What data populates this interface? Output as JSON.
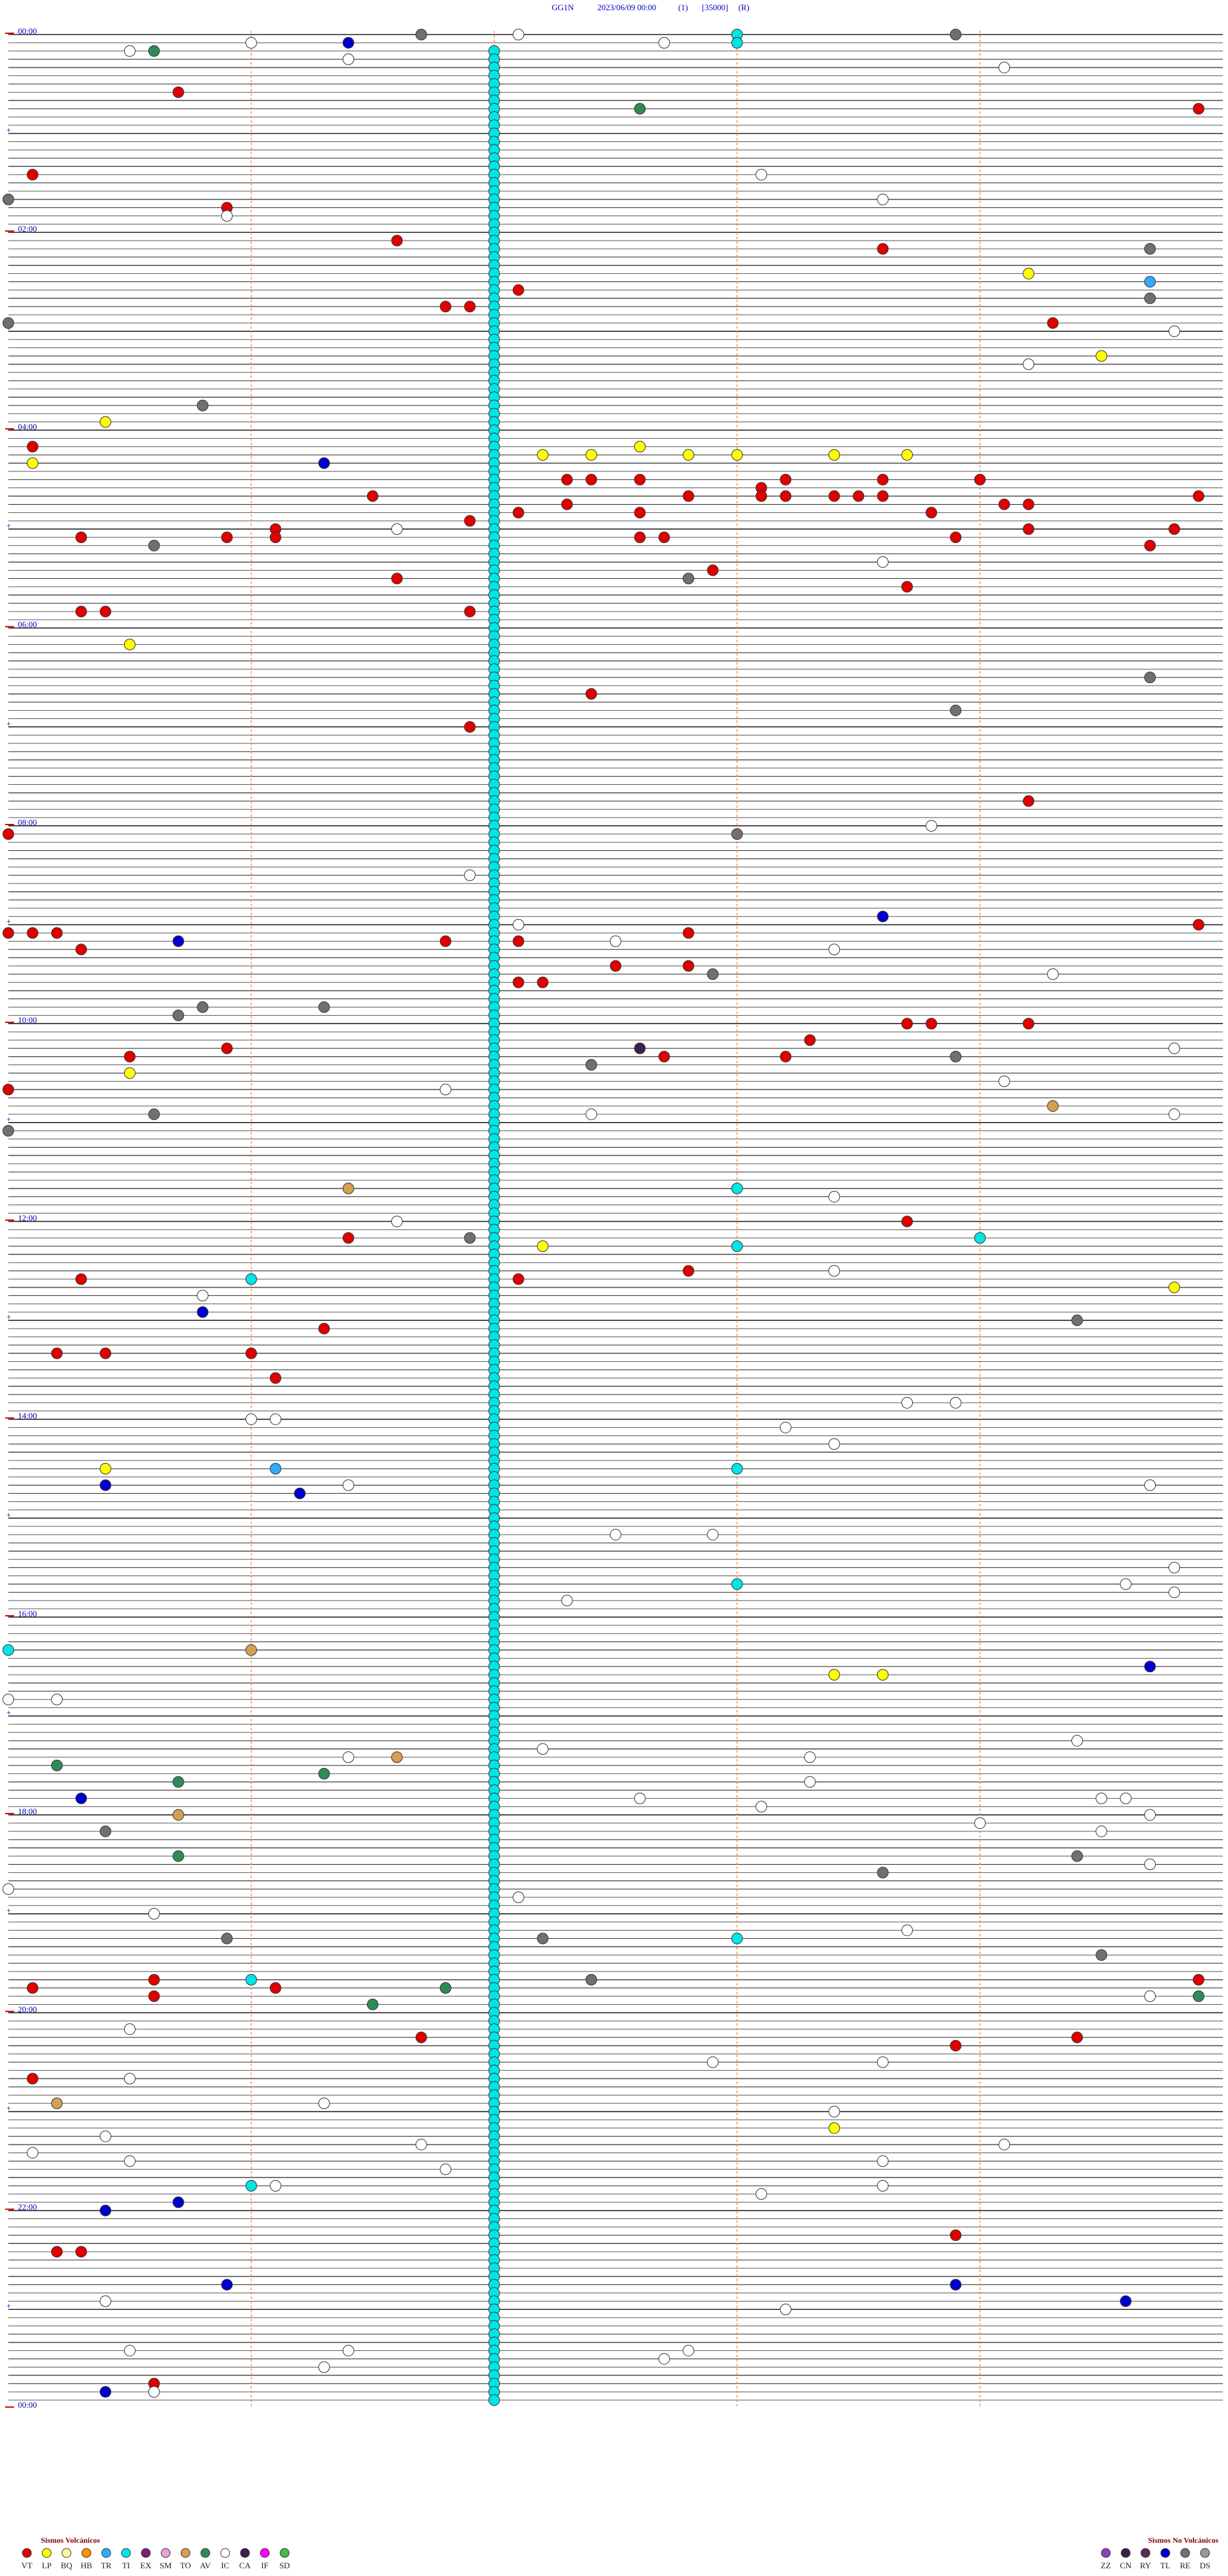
{
  "header": {
    "station": "GG1N",
    "datetime": "2023/06/09 00:00",
    "channel": "(1)",
    "scale": "[35000]",
    "mode": "(R)"
  },
  "time_labels": [
    "00:00",
    "02:00",
    "04:00",
    "06:00",
    "08:00",
    "10:00",
    "12:00",
    "14:00",
    "16:00",
    "18:00",
    "20:00",
    "22:00",
    "00:00"
  ],
  "legend": {
    "volcanic": {
      "title": "Sismos Volcánicos",
      "types": [
        {
          "code": "VT",
          "color": "#e00000"
        },
        {
          "code": "LP",
          "color": "#ffff00"
        },
        {
          "code": "BQ",
          "color": "#ffffa0"
        },
        {
          "code": "HB",
          "color": "#ff9000"
        },
        {
          "code": "TR",
          "color": "#33aaff"
        },
        {
          "code": "TI",
          "color": "#00e5e5"
        },
        {
          "code": "EX",
          "color": "#7a1f7a"
        },
        {
          "code": "SM",
          "color": "#e8a0d8"
        },
        {
          "code": "TO",
          "color": "#d2a050"
        },
        {
          "code": "AV",
          "color": "#2e8b57"
        },
        {
          "code": "IC",
          "color": "#ffffff"
        },
        {
          "code": "CA",
          "color": "#3b2050"
        },
        {
          "code": "IF",
          "color": "#ff00ff"
        },
        {
          "code": "SD",
          "color": "#44bb44"
        }
      ]
    },
    "non_volcanic": {
      "title": "Sismos No Volcánicos",
      "types": [
        {
          "code": "ZZ",
          "color": "#8b3fbf"
        },
        {
          "code": "CN",
          "color": "#3a1f4a"
        },
        {
          "code": "RY",
          "color": "#5a2a5a"
        },
        {
          "code": "TL",
          "color": "#0000cc"
        },
        {
          "code": "RE",
          "color": "#707070"
        },
        {
          "code": "DS",
          "color": "#999999"
        }
      ]
    }
  },
  "events": [
    {
      "type": "VT",
      "minutes": [
        35.7,
        49.9,
        85.1,
        105.9,
        126.6,
        133.6,
        157.1,
        166.8,
        166.9,
        179.3,
        250.1,
        272.3,
        272.4,
        272.6,
        273.2,
        273.6,
        274.0,
        281.5,
        282.8,
        278.1,
        283.1,
        283.2,
        283.4,
        283.5,
        283.6,
        284.9,
        287.3,
        292.1,
        292.6,
        293.8,
        289.1,
        289.2,
        296.9,
        301.1,
        304.2,
        304.8,
        305.3,
        305.9,
        306.1,
        307.6,
        307.7,
        308.9,
        314.7,
        327.9,
        331.6,
        338.7,
        350.3,
        350.4,
        351.9,
        402.4,
        421.9,
        469.2,
        485.0,
        544.9,
        545.0,
        545.1,
        545.2,
        551.8,
        552.1,
        547.8,
        555.3,
        567.5,
        567.8,
        567.0,
        577.1,
        577.2,
        603.7,
        603.8,
        604.2,
        613.3,
        615.9,
        620.5,
        622.7,
        623.2,
        640.0,
        723.7,
        731.4,
        752.8,
        757.1,
        755.3,
        786.3,
        800.2,
        800.4,
        801.0,
        816.1,
        1180.6,
        1184.9,
        1185.1,
        1186.1,
        1190.6,
        1216.7,
        1219.4,
        1223.9,
        1240.1,
        1338.9,
        1345.2,
        1345.3,
        1425.6
      ]
    },
    {
      "type": "LP",
      "minutes": [
        149.2,
        199.5,
        235.4,
        260.1,
        257.2,
        257.4,
        252.6,
        257.8,
        258.0,
        258.4,
        258.7,
        370.5,
        630.5,
        737.2,
        764.8,
        870.4,
        998.4,
        998.6,
        1273.4
      ]
    },
    {
      "type": "TL",
      "minutes": [
        6.4,
        261.3,
        538.6,
        550.7,
        775.8,
        880.4,
        886.2,
        994.7,
        1070.3,
        1315.7,
        1320.4,
        1365.9,
        1368.9,
        1379.6,
        1430.4
      ]
    },
    {
      "type": "TR",
      "minutes": [
        154.7,
        871.1
      ]
    },
    {
      "type": "AV",
      "minutes": [
        10.6,
        47.6,
        1050.2,
        1056.3,
        1060.7,
        1105.7,
        1186.8,
        1194.9,
        1196.5
      ]
    },
    {
      "type": "TO",
      "minutes": [
        654.3,
        701.4,
        981.0,
        1046.6,
        1080.7,
        1255.2
      ]
    },
    {
      "type": "CA",
      "minutes": [
        617.6
      ]
    },
    {
      "type": "RE",
      "minutes": [
        1.7,
        3.9,
        100.0,
        134.7,
        164.7,
        175.0,
        225.8,
        310.6,
        332.8,
        394.7,
        413.9,
        488.0,
        572.9,
        590.8,
        595.7,
        591.3,
        623.9,
        627.4,
        655.6,
        665.0,
        731.9,
        784.4,
        1090.4,
        1109.4,
        1118.6,
        1155.9,
        1157.2,
        1169.5,
        1182.4,
        1307.0
      ]
    },
    {
      "type": "IC",
      "minutes": [
        2.1,
        6.0,
        7.7,
        10.5,
        16.4,
        24.1,
        88.1,
        110.9,
        103.6,
        184.8,
        204.2,
        301.6,
        323.6,
        483.8,
        511.9,
        542.1,
        552.5,
        558.4,
        574.3,
        619.8,
        639.1,
        641.8,
        657.4,
        659.8,
        708.4,
        721.6,
        753.4,
        765.8,
        833.7,
        833.9,
        841.0,
        841.1,
        848.2,
        858.4,
        881.4,
        884.7,
        912.5,
        912.9,
        922.0,
        934.8,
        942.0,
        944.6,
        949.8,
        952.3,
        1010.0,
        1010.2,
        1039.4,
        1042.2,
        1046.4,
        1048.3,
        1063.3,
        1072.6,
        1074.5,
        1074.6,
        1078.1,
        1084.7,
        1089.0,
        1094.5,
        1114.7,
        1125.0,
        1132.1,
        1140.6,
        1153.7,
        1194.7,
        1210.5,
        1232.9,
        1233.6,
        1240.5,
        1256.3,
        1263.4,
        1275.4,
        1281.7,
        1284.1,
        1285.1,
        1290.5,
        1293.6,
        1296.8,
        1306.1,
        1308.6,
        1313.1,
        1375.4,
        1383.2,
        1405.5,
        1406.4,
        1407.8,
        1412.7,
        1416.3,
        1430.6
      ]
    },
    {
      "type": "TI",
      "minutes": [
        3.0,
        8.0,
        703.0,
        734.0,
        738.0,
        756.0,
        873.0,
        943.0,
        980.0,
        1158.0,
        1181.0,
        1306.0,
        12,
        17,
        22,
        27,
        32,
        37,
        42,
        47,
        52,
        57,
        62,
        67,
        72,
        77,
        82,
        87,
        92,
        97,
        102,
        107,
        112,
        117,
        122,
        127,
        132,
        137,
        142,
        147,
        152,
        157,
        162,
        167,
        172,
        177,
        182,
        187,
        192,
        197,
        202,
        207,
        212,
        217,
        222,
        227,
        232,
        237,
        242,
        247,
        252,
        257,
        262,
        267,
        272,
        277,
        282,
        287,
        292,
        297,
        302,
        307,
        312,
        317,
        322,
        327,
        332,
        337,
        342,
        347,
        352,
        357,
        362,
        367,
        372,
        377,
        382,
        387,
        392,
        397,
        402,
        407,
        412,
        417,
        422,
        427,
        432,
        437,
        442,
        447,
        452,
        457,
        462,
        467,
        472,
        477,
        482,
        487,
        492,
        497,
        502,
        507,
        512,
        517,
        522,
        527,
        532,
        537,
        542,
        547,
        552,
        557,
        562,
        567,
        572,
        577,
        582,
        587,
        592,
        597,
        602,
        607,
        612,
        617,
        622,
        627,
        632,
        637,
        642,
        647,
        652,
        657,
        662,
        667,
        672,
        677,
        682,
        687,
        692,
        697,
        702,
        707,
        712,
        717,
        722,
        727,
        732,
        737,
        742,
        747,
        752,
        757,
        762,
        767,
        772,
        777,
        782,
        787,
        792,
        797,
        802,
        807,
        812,
        817,
        822,
        827,
        832,
        837,
        842,
        847,
        852,
        857,
        862,
        867,
        872,
        877,
        882,
        887,
        892,
        897,
        902,
        907,
        912,
        917,
        922,
        927,
        932,
        937,
        942,
        947,
        952,
        957,
        962,
        967,
        972,
        977,
        982,
        987,
        992,
        997,
        1002,
        1007,
        1012,
        1017,
        1022,
        1027,
        1032,
        1037,
        1042,
        1047,
        1052,
        1057,
        1062,
        1067,
        1072,
        1077,
        1082,
        1087,
        1092,
        1097,
        1102,
        1107,
        1112,
        1117,
        1122,
        1127,
        1132,
        1137,
        1142,
        1147,
        1152,
        1157,
        1162,
        1167,
        1172,
        1177,
        1182,
        1187,
        1192,
        1197,
        1202,
        1207,
        1212,
        1217,
        1222,
        1227,
        1232,
        1237,
        1242,
        1247,
        1252,
        1257,
        1262,
        1267,
        1272,
        1277,
        1282,
        1287,
        1292,
        1297,
        1302,
        1307,
        1312,
        1317,
        1322,
        1327,
        1332,
        1337,
        1342,
        1347,
        1352,
        1357,
        1362,
        1367,
        1372,
        1377,
        1382,
        1387,
        1392,
        1397,
        1402,
        1407,
        1412,
        1417,
        1422,
        1427,
        1432,
        1437
      ]
    }
  ]
}
